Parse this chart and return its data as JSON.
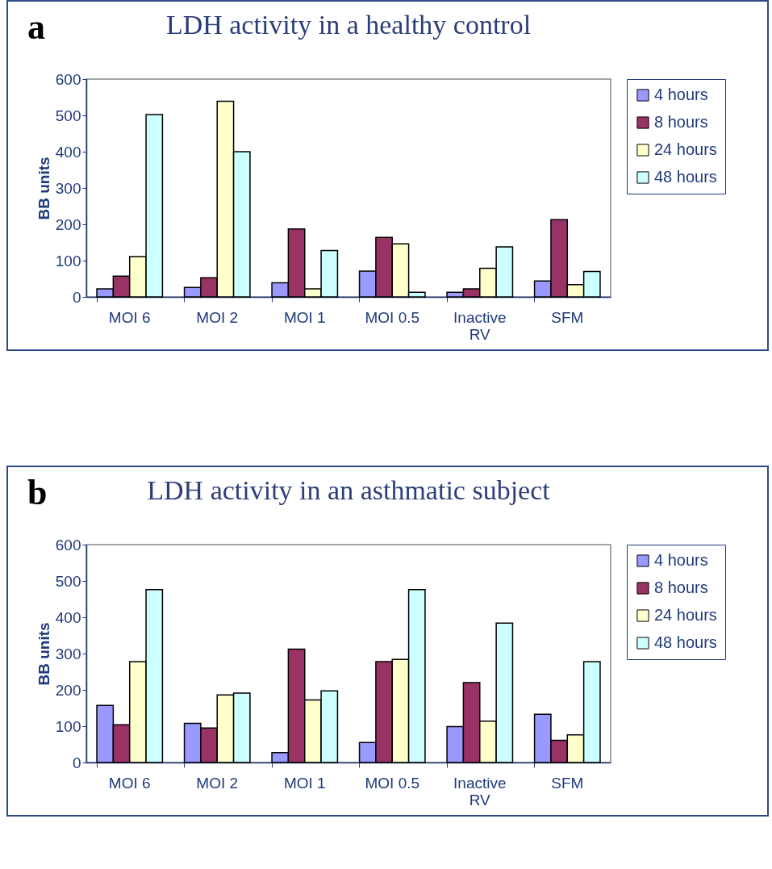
{
  "chart_data": [
    {
      "type": "bar",
      "title": "LDH activity in a healthy control",
      "ylabel": "BB units",
      "annotations": [
        "a"
      ],
      "legend": "right",
      "grid": false,
      "categories": [
        "MOI 6",
        "MOI 2",
        "MOI 1",
        "MOI 0.5",
        "Inactive RV",
        "SFM"
      ],
      "ylim": [
        0,
        600
      ],
      "yticks": [
        0,
        100,
        200,
        300,
        400,
        500,
        600
      ],
      "series": [
        {
          "name": "4 hours",
          "color": "#9999ff",
          "values": [
            22,
            26,
            39,
            71,
            13,
            44
          ]
        },
        {
          "name": "8 hours",
          "color": "#993366",
          "values": [
            57,
            53,
            187,
            164,
            22,
            213
          ]
        },
        {
          "name": "24 hours",
          "color": "#ffffcc",
          "values": [
            111,
            539,
            22,
            146,
            79,
            34
          ]
        },
        {
          "name": "48 hours",
          "color": "#ccffff",
          "values": [
            502,
            400,
            128,
            13,
            138,
            70
          ]
        }
      ]
    },
    {
      "type": "bar",
      "title": "LDH activity in an asthmatic subject",
      "ylabel": "BB units",
      "annotations": [
        "b"
      ],
      "legend": "right",
      "grid": false,
      "categories": [
        "MOI 6",
        "MOI 2",
        "MOI 1",
        "MOI 0.5",
        "Inactive RV",
        "SFM"
      ],
      "ylim": [
        0,
        600
      ],
      "yticks": [
        0,
        100,
        200,
        300,
        400,
        500,
        600
      ],
      "series": [
        {
          "name": "4 hours",
          "color": "#9999ff",
          "values": [
            157,
            108,
            27,
            55,
            99,
            133
          ]
        },
        {
          "name": "8 hours",
          "color": "#993366",
          "values": [
            104,
            95,
            312,
            278,
            220,
            61
          ]
        },
        {
          "name": "24 hours",
          "color": "#ffffcc",
          "values": [
            278,
            186,
            172,
            284,
            114,
            76
          ]
        },
        {
          "name": "48 hours",
          "color": "#ccffff",
          "values": [
            476,
            191,
            197,
            476,
            384,
            278
          ]
        }
      ]
    }
  ]
}
